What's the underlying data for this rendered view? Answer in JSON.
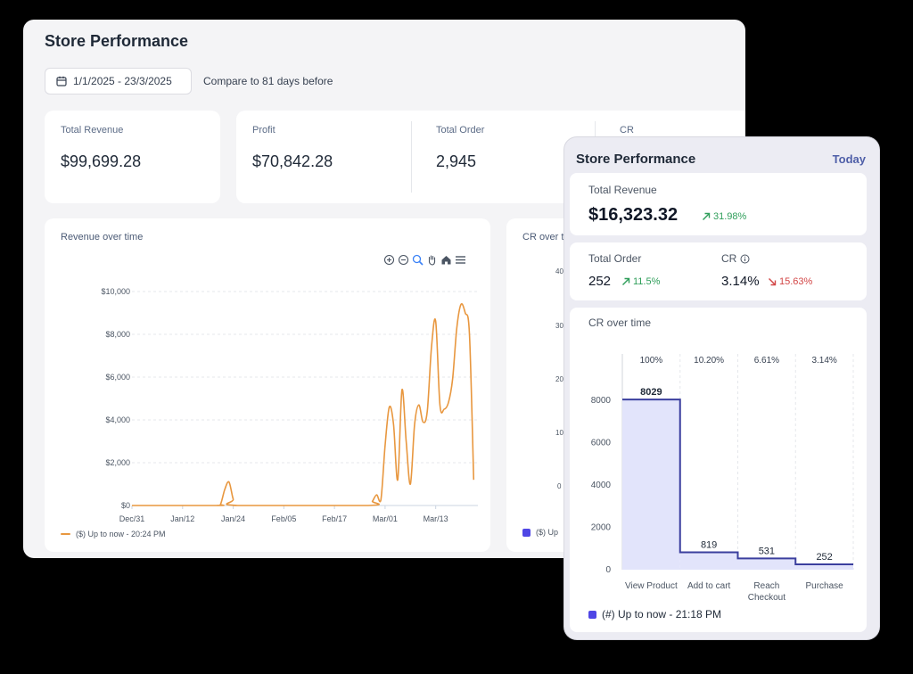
{
  "main": {
    "title": "Store Performance",
    "date_range": "1/1/2025 - 23/3/2025",
    "compare": "Compare to 81 days before",
    "kpis": [
      {
        "label": "Total Revenue",
        "value": "$99,699.28"
      },
      {
        "label": "Profit",
        "value": "$70,842.28"
      },
      {
        "label": "Total Order",
        "value": "2,945"
      },
      {
        "label": "CR",
        "value": ""
      }
    ],
    "revenue_chart": {
      "title": "Revenue over time",
      "legend": "($) Up to now - 20:24 PM",
      "color": "#e8973f",
      "toolbar_icons": [
        "zoom-in-icon",
        "zoom-out-icon",
        "zoom-select-icon",
        "pan-hand-icon",
        "home-icon",
        "menu-icon"
      ]
    },
    "cr_chart_partial": {
      "title": "CR over t",
      "legend": "($) Up",
      "y_ticks": [
        "40",
        "30",
        "20",
        "10",
        "0"
      ]
    }
  },
  "front": {
    "title": "Store Performance",
    "period": "Today",
    "total_revenue": {
      "label": "Total Revenue",
      "value": "$16,323.32",
      "delta": "31.98%",
      "direction": "up"
    },
    "total_order": {
      "label": "Total Order",
      "value": "252",
      "delta": "11.5%",
      "direction": "up"
    },
    "cr": {
      "label": "CR",
      "value": "3.14%",
      "delta": "15.63%",
      "direction": "down"
    },
    "funnel_title": "CR over time",
    "funnel_legend": "(#) Up to now - 21:18 PM",
    "funnel_color": "#3b3f9e"
  },
  "chart_data": [
    {
      "type": "line",
      "title": "Revenue over time",
      "xlabel": "",
      "ylabel": "",
      "x_ticks": [
        "Dec/31",
        "Jan/12",
        "Jan/24",
        "Feb/05",
        "Feb/17",
        "Mar/01",
        "Mar/13"
      ],
      "y_ticks": [
        "$0",
        "$2,000",
        "$4,000",
        "$6,000",
        "$8,000",
        "$10,000"
      ],
      "ylim": [
        0,
        10000
      ],
      "xlim": [
        "2024-12-31",
        "2025-03-23"
      ],
      "grid": true,
      "legend_position": "bottom-left",
      "series": [
        {
          "name": "($) Up to now - 20:24 PM",
          "points": [
            [
              "2024-12-31",
              0
            ],
            [
              "2025-01-20",
              0
            ],
            [
              "2025-01-21",
              60
            ],
            [
              "2025-01-22",
              750
            ],
            [
              "2025-01-23",
              1100
            ],
            [
              "2025-01-24",
              300
            ],
            [
              "2025-01-25",
              0
            ],
            [
              "2025-02-25",
              0
            ],
            [
              "2025-02-26",
              200
            ],
            [
              "2025-02-27",
              500
            ],
            [
              "2025-02-28",
              250
            ],
            [
              "2025-03-01",
              2800
            ],
            [
              "2025-03-02",
              4600
            ],
            [
              "2025-03-03",
              3800
            ],
            [
              "2025-03-04",
              1200
            ],
            [
              "2025-03-05",
              5400
            ],
            [
              "2025-03-06",
              3000
            ],
            [
              "2025-03-07",
              1000
            ],
            [
              "2025-03-08",
              3800
            ],
            [
              "2025-03-09",
              4700
            ],
            [
              "2025-03-10",
              3900
            ],
            [
              "2025-03-11",
              4400
            ],
            [
              "2025-03-12",
              7400
            ],
            [
              "2025-03-13",
              8600
            ],
            [
              "2025-03-14",
              4700
            ],
            [
              "2025-03-15",
              4500
            ],
            [
              "2025-03-16",
              4800
            ],
            [
              "2025-03-17",
              5900
            ],
            [
              "2025-03-18",
              8300
            ],
            [
              "2025-03-19",
              9400
            ],
            [
              "2025-03-20",
              9000
            ],
            [
              "2025-03-21",
              8000
            ],
            [
              "2025-03-22",
              1200
            ]
          ]
        }
      ]
    },
    {
      "type": "area",
      "title": "CR over time",
      "categories": [
        "View Product",
        "Add to cart",
        "Reach Checkout",
        "Purchase"
      ],
      "values": [
        8029,
        819,
        531,
        252
      ],
      "percent_labels": [
        "100%",
        "10.20%",
        "6.61%",
        "3.14%"
      ],
      "y_ticks": [
        "0",
        "2000",
        "4000",
        "6000",
        "8000"
      ],
      "ylim": [
        0,
        9000
      ],
      "legend_position": "bottom-left",
      "series": [
        {
          "name": "(#) Up to now - 21:18 PM",
          "values": [
            8029,
            819,
            531,
            252
          ]
        }
      ]
    }
  ]
}
